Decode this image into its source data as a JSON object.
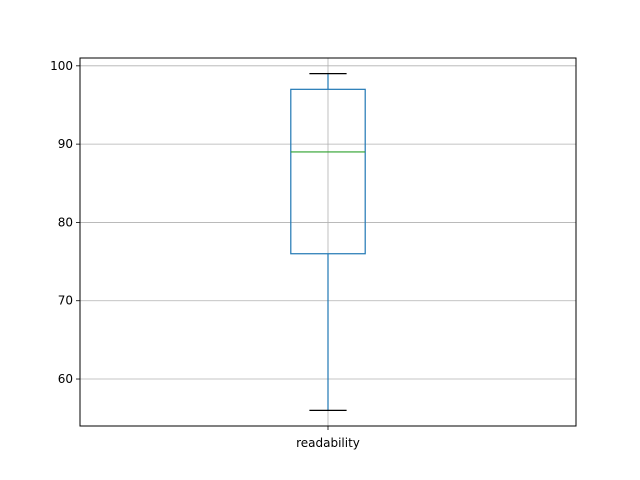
{
  "chart_data": {
    "type": "box",
    "title": "",
    "xlabel": "",
    "ylabel": "",
    "ylim": [
      54,
      101
    ],
    "y_ticks": [
      "60",
      "70",
      "80",
      "90",
      "100"
    ],
    "grid": true,
    "categories": [
      "readability"
    ],
    "boxes": [
      {
        "category": "readability",
        "whisker_low": 56,
        "q1": 76,
        "median": 89,
        "q3": 97,
        "whisker_high": 99
      }
    ],
    "colors": {
      "box": "#1f77b4",
      "whisker": "#1f77b4",
      "median": "#2ca02c",
      "cap": "#000000",
      "grid": "#b0b0b0",
      "axes": "#000000"
    }
  }
}
